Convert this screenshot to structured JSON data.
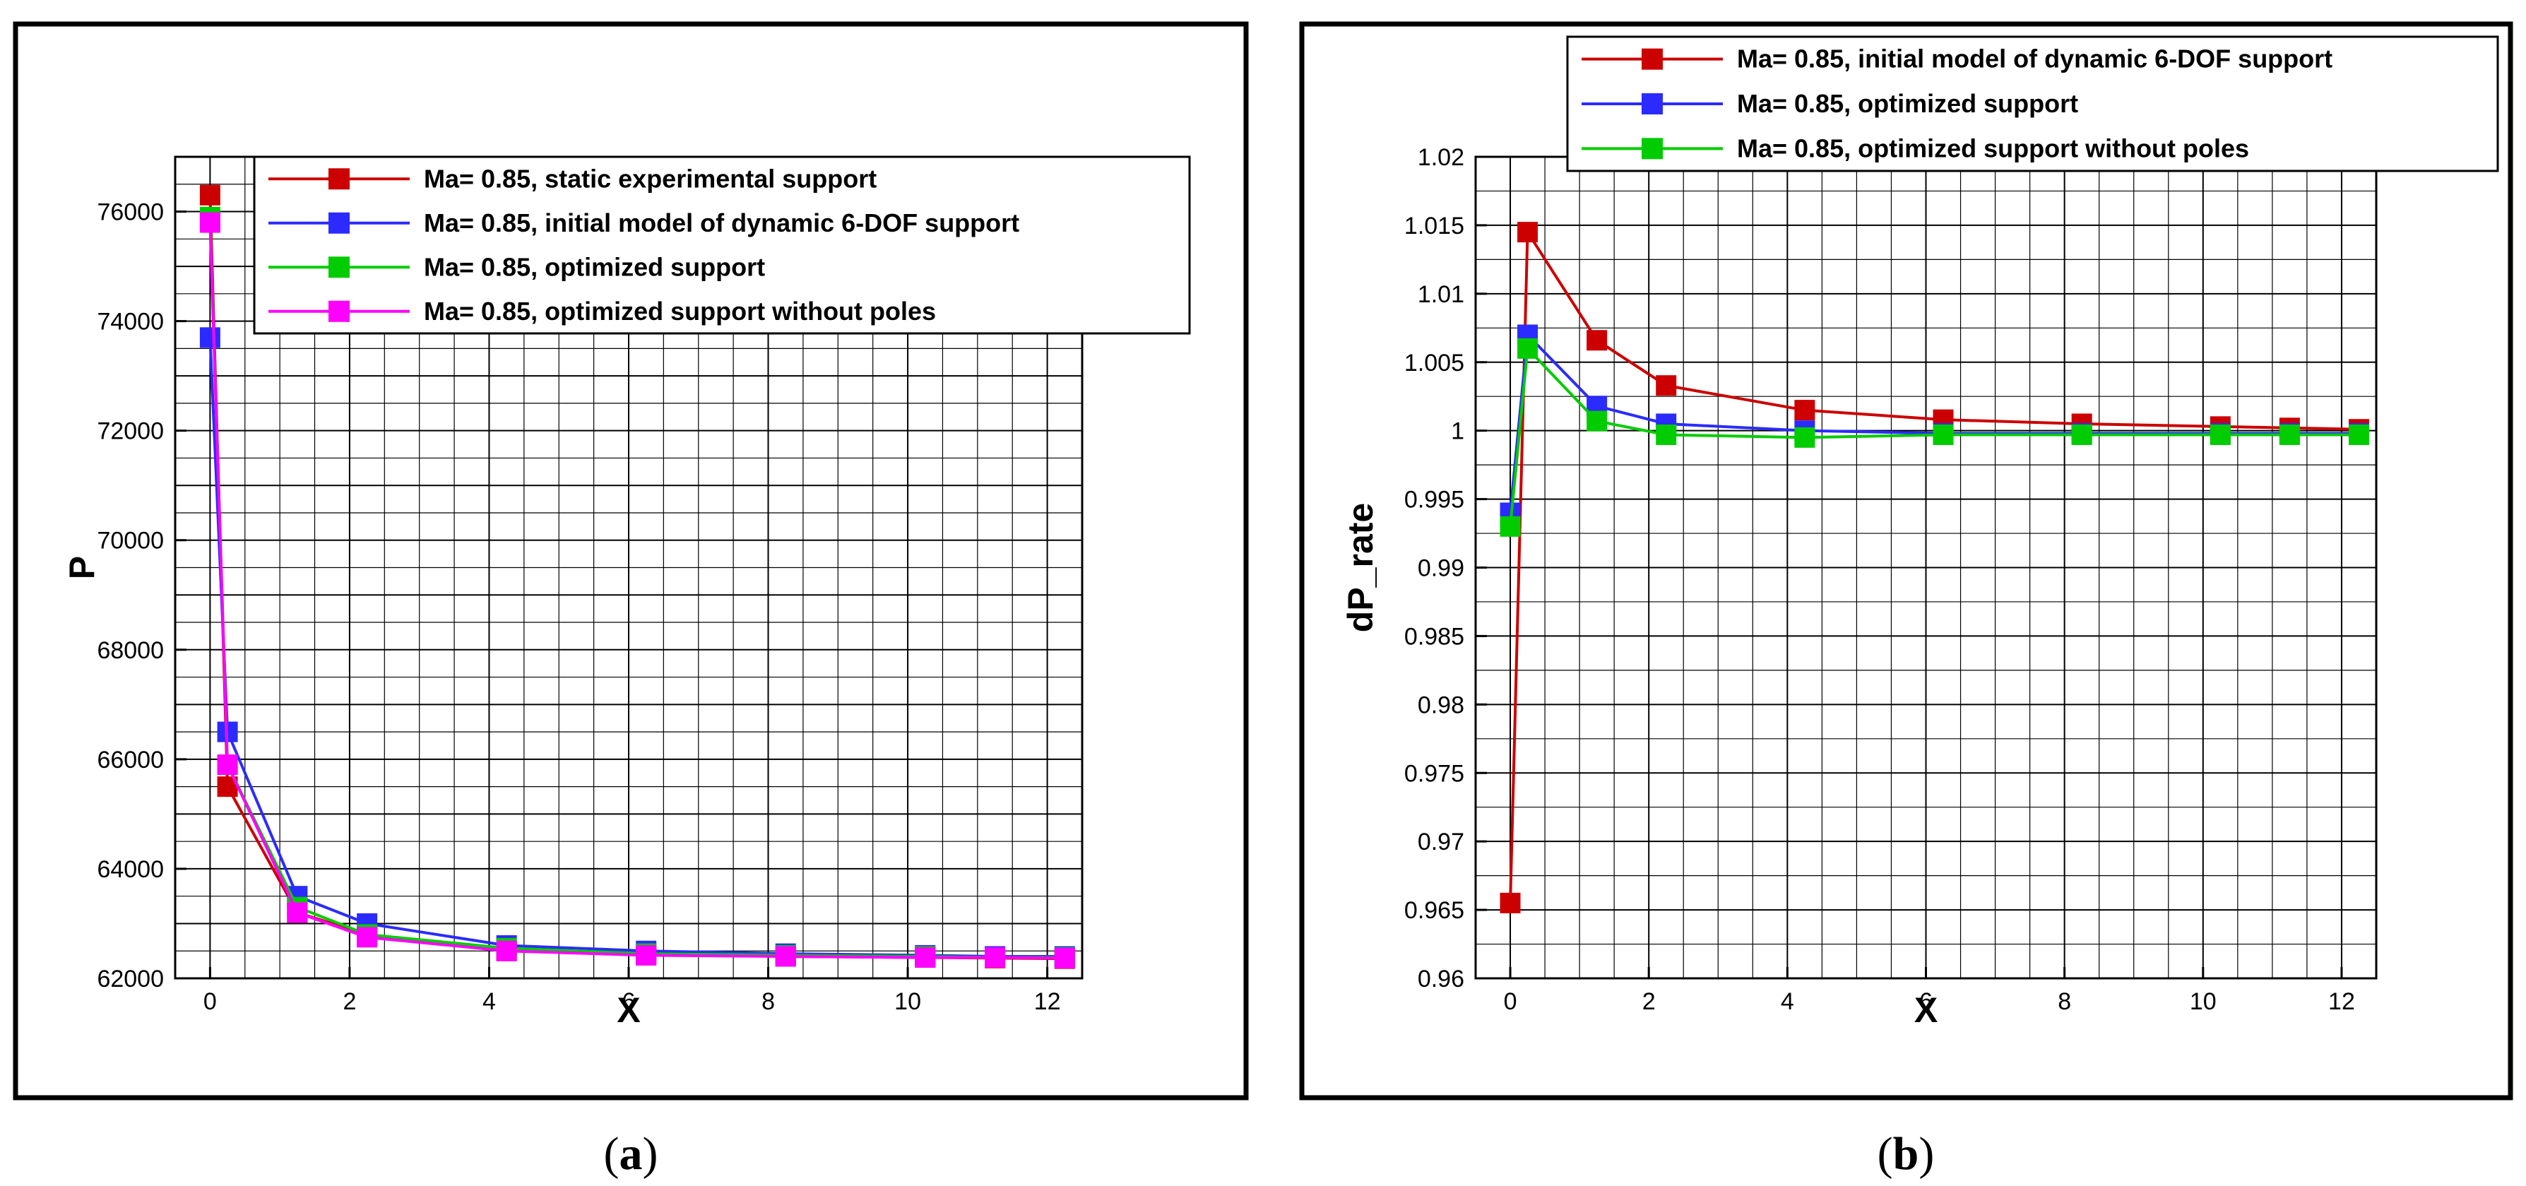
{
  "chart_data": [
    {
      "type": "line",
      "panel": "a",
      "caption": {
        "open": "(",
        "letter": "a",
        "close": ")"
      },
      "title": "",
      "xlabel": "X",
      "ylabel": "P",
      "xlim": [
        -0.5,
        12.5
      ],
      "ylim": [
        62000,
        77000
      ],
      "xticks": [
        0,
        2,
        4,
        6,
        8,
        10,
        12
      ],
      "xtick_labels": [
        "0",
        "2",
        "4",
        "6",
        "8",
        "10",
        "12"
      ],
      "yticks": [
        62000,
        64000,
        66000,
        68000,
        70000,
        72000,
        74000,
        76000
      ],
      "ytick_labels": [
        "62000",
        "64000",
        "66000",
        "68000",
        "70000",
        "72000",
        "74000",
        "76000"
      ],
      "x_minor_step": 0.5,
      "y_minor_step": 500,
      "grid": true,
      "legend_position": "top-right",
      "x": [
        0,
        0.25,
        1.25,
        2.25,
        4.25,
        6.25,
        8.25,
        10.25,
        11.25,
        12.25
      ],
      "series": [
        {
          "name": "Ma= 0.85, static experimental support",
          "color": "#cc0000",
          "values": [
            76300,
            65500,
            63200,
            62800,
            62500,
            62450,
            62400,
            62380,
            62370,
            62360
          ]
        },
        {
          "name": "Ma= 0.85, initial model of dynamic 6-DOF support",
          "color": "#2b2bff",
          "values": [
            73700,
            66500,
            63500,
            63000,
            62600,
            62500,
            62450,
            62420,
            62400,
            62400
          ]
        },
        {
          "name": "Ma= 0.85, optimized support",
          "color": "#00cc00",
          "values": [
            75900,
            65900,
            63300,
            62800,
            62550,
            62450,
            62420,
            62400,
            62380,
            62380
          ]
        },
        {
          "name": "Ma= 0.85, optimized support without poles",
          "color": "#ff00ff",
          "values": [
            75800,
            65900,
            63200,
            62750,
            62500,
            62420,
            62400,
            62380,
            62380,
            62370
          ]
        }
      ]
    },
    {
      "type": "line",
      "panel": "b",
      "caption": {
        "open": "(",
        "letter": "b",
        "close": ")"
      },
      "title": "",
      "xlabel": "X",
      "ylabel": "dP_rate",
      "xlim": [
        -0.5,
        12.5
      ],
      "ylim": [
        0.96,
        1.02
      ],
      "xticks": [
        0,
        2,
        4,
        6,
        8,
        10,
        12
      ],
      "xtick_labels": [
        "0",
        "2",
        "4",
        "6",
        "8",
        "10",
        "12"
      ],
      "yticks": [
        0.96,
        0.965,
        0.97,
        0.975,
        0.98,
        0.985,
        0.99,
        0.995,
        1.0,
        1.005,
        1.01,
        1.015,
        1.02
      ],
      "ytick_labels": [
        "0.96",
        "0.965",
        "0.97",
        "0.975",
        "0.98",
        "0.985",
        "0.99",
        "0.995",
        "1",
        "1.005",
        "1.01",
        "1.015",
        "1.02"
      ],
      "x_minor_step": 0.5,
      "y_minor_step": 0.0025,
      "grid": true,
      "legend_position": "top-right",
      "x": [
        0,
        0.25,
        1.25,
        2.25,
        4.25,
        6.25,
        8.25,
        10.25,
        11.25,
        12.25
      ],
      "series": [
        {
          "name": "Ma= 0.85, initial model of dynamic 6-DOF support",
          "color": "#cc0000",
          "values": [
            0.9655,
            1.0145,
            1.0066,
            1.0033,
            1.0015,
            1.0008,
            1.0005,
            1.0003,
            1.0002,
            1.0001
          ]
        },
        {
          "name": "Ma= 0.85, optimized support",
          "color": "#2b2bff",
          "values": [
            0.994,
            1.007,
            1.0018,
            1.0005,
            1.0,
            0.9998,
            0.9998,
            0.9998,
            0.9998,
            0.9998
          ]
        },
        {
          "name": "Ma= 0.85, optimized support without poles",
          "color": "#00cc00",
          "values": [
            0.993,
            1.006,
            1.0007,
            0.9997,
            0.9995,
            0.9997,
            0.9997,
            0.9997,
            0.9997,
            0.9997
          ]
        }
      ]
    }
  ]
}
